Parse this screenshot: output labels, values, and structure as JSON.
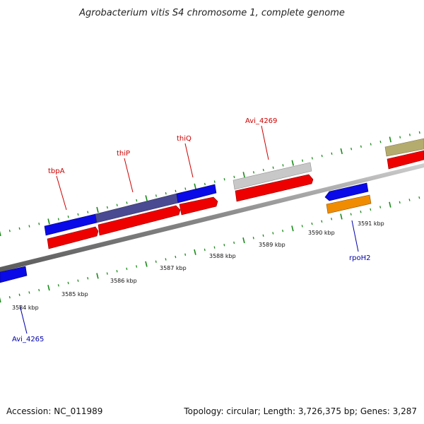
{
  "title": "Agrobacterium vitis S4 chromosome 1, complete genome",
  "footer": {
    "accession": "Accession: NC_011989",
    "summary": "Topology: circular; Length: 3,726,375 bp; Genes: 3,287"
  },
  "colors": {
    "blue": "#0a0ae8",
    "red": "#ee0000",
    "grey": "#c8c8c8",
    "purple": "#4a4a92",
    "orange": "#f08c00",
    "olive": "#b4ab6e",
    "tick": "#1a8a1a",
    "backbone": "#8a8a8a",
    "label_red": "#cc0000",
    "label_blue": "#0000aa"
  },
  "scale_labels": [
    {
      "text": "3584 kbp"
    },
    {
      "text": "3585 kbp"
    },
    {
      "text": "3586 kbp"
    },
    {
      "text": "3587 kbp"
    },
    {
      "text": "3588 kbp"
    },
    {
      "text": "3589 kbp"
    },
    {
      "text": "3590 kbp"
    },
    {
      "text": "3591 kbp"
    }
  ],
  "gene_labels": [
    {
      "name": "tbpA",
      "color": "red"
    },
    {
      "name": "thiP",
      "color": "red"
    },
    {
      "name": "thiQ",
      "color": "red"
    },
    {
      "name": "Avi_4269",
      "color": "red"
    },
    {
      "name": "rpoH2",
      "color": "blue"
    },
    {
      "name": "Avi_4265",
      "color": "blue"
    }
  ]
}
